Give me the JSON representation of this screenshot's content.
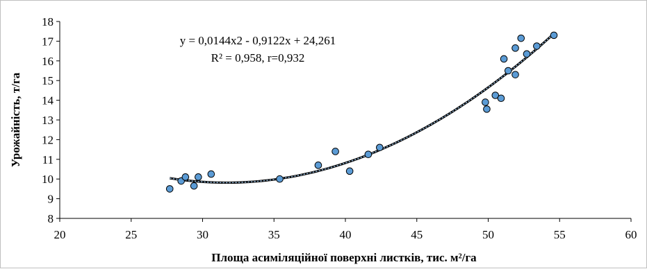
{
  "chart_data": {
    "type": "scatter",
    "xlabel": "Площа асиміляційної поверхні листків, тис. м²/га",
    "ylabel": "Урожайність, т/га",
    "xlim": [
      20,
      60
    ],
    "ylim": [
      8,
      18
    ],
    "x_ticks": [
      "20",
      "25",
      "30",
      "35",
      "40",
      "45",
      "50",
      "55",
      "60"
    ],
    "y_ticks": [
      "8",
      "9",
      "10",
      "11",
      "12",
      "13",
      "14",
      "15",
      "16",
      "17",
      "18"
    ],
    "grid": false,
    "points": [
      {
        "x": 27.7,
        "y": 9.5
      },
      {
        "x": 28.5,
        "y": 9.9
      },
      {
        "x": 28.8,
        "y": 10.1
      },
      {
        "x": 29.4,
        "y": 9.65
      },
      {
        "x": 29.7,
        "y": 10.1
      },
      {
        "x": 30.6,
        "y": 10.25
      },
      {
        "x": 35.4,
        "y": 10.0
      },
      {
        "x": 38.1,
        "y": 10.7
      },
      {
        "x": 39.3,
        "y": 11.4
      },
      {
        "x": 40.3,
        "y": 10.4
      },
      {
        "x": 41.6,
        "y": 11.25
      },
      {
        "x": 42.4,
        "y": 11.6
      },
      {
        "x": 49.8,
        "y": 13.9
      },
      {
        "x": 49.9,
        "y": 13.55
      },
      {
        "x": 50.5,
        "y": 14.25
      },
      {
        "x": 50.9,
        "y": 14.1
      },
      {
        "x": 51.1,
        "y": 16.1
      },
      {
        "x": 51.4,
        "y": 15.5
      },
      {
        "x": 51.9,
        "y": 15.3
      },
      {
        "x": 51.9,
        "y": 16.65
      },
      {
        "x": 52.3,
        "y": 17.15
      },
      {
        "x": 52.7,
        "y": 16.35
      },
      {
        "x": 53.4,
        "y": 16.75
      },
      {
        "x": 54.6,
        "y": 17.3
      }
    ],
    "trendline": {
      "kind": "polynomial",
      "coefficients": [
        0.0144,
        -0.9122,
        24.261
      ],
      "x_range": [
        27.7,
        54.6
      ]
    },
    "annotations": {
      "equation": "y = 0,0144x2 - 0,9122x + 24,261",
      "r_squared": "R² = 0,958, r=0,932"
    },
    "colors": {
      "marker_fill": "#5b9bd5",
      "marker_stroke": "#000000",
      "trend_outer": "#000000",
      "trend_inner": "#9dc3e6",
      "axis": "#000000"
    }
  }
}
